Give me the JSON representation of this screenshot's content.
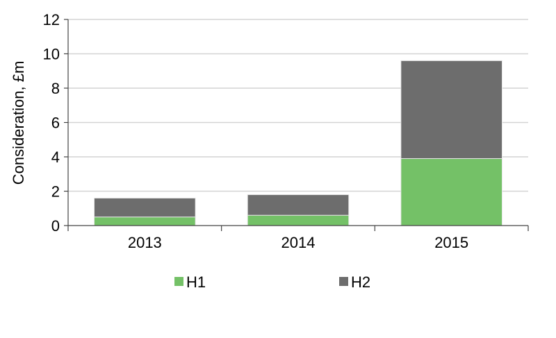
{
  "chart_data": {
    "type": "bar",
    "stacked": true,
    "title": "",
    "xlabel": "",
    "ylabel": "Consideration, £m",
    "categories": [
      "2013",
      "2014",
      "2015"
    ],
    "series": [
      {
        "name": "H1",
        "values": [
          0.5,
          0.6,
          3.9
        ],
        "color": "#74c167"
      },
      {
        "name": "H2",
        "values": [
          1.1,
          1.2,
          5.7
        ],
        "color": "#6d6d6d"
      }
    ],
    "ylim": [
      0,
      12
    ],
    "yticks": [
      "0",
      "2",
      "4",
      "6",
      "8",
      "10",
      "12"
    ],
    "grid": true,
    "legend": "bottom"
  }
}
